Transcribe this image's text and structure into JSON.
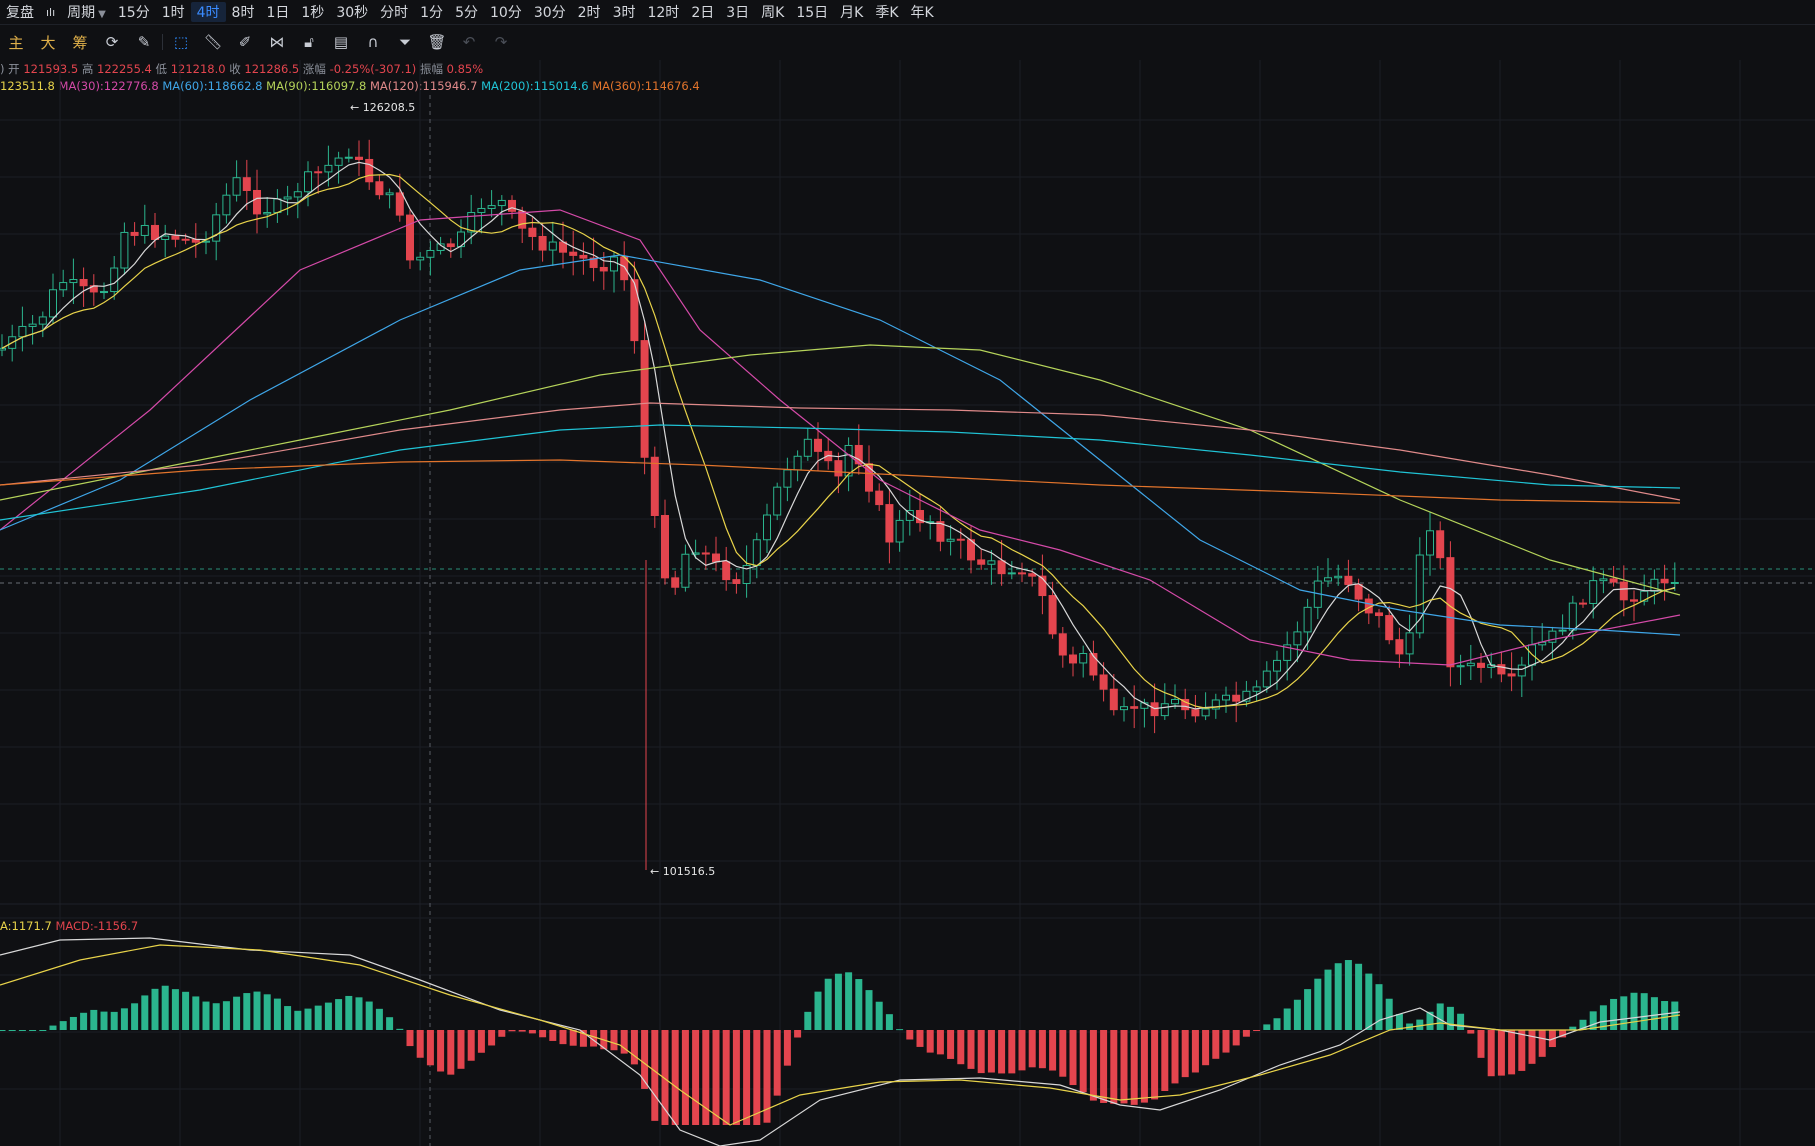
{
  "toolbar": {
    "items": [
      {
        "label": "复盘",
        "active": false
      },
      {
        "label": "周期",
        "active": false,
        "dropdown": true
      },
      {
        "label": "15分",
        "active": false
      },
      {
        "label": "1时",
        "active": false
      },
      {
        "label": "4时",
        "active": true
      },
      {
        "label": "8时",
        "active": false
      },
      {
        "label": "1日",
        "active": false
      },
      {
        "label": "1秒",
        "active": false
      },
      {
        "label": "30秒",
        "active": false
      },
      {
        "label": "分时",
        "active": false
      },
      {
        "label": "1分",
        "active": false
      },
      {
        "label": "5分",
        "active": false
      },
      {
        "label": "10分",
        "active": false
      },
      {
        "label": "30分",
        "active": false
      },
      {
        "label": "2时",
        "active": false
      },
      {
        "label": "3时",
        "active": false
      },
      {
        "label": "12时",
        "active": false
      },
      {
        "label": "2日",
        "active": false
      },
      {
        "label": "3日",
        "active": false
      },
      {
        "label": "周K",
        "active": false
      },
      {
        "label": "15日",
        "active": false
      },
      {
        "label": "月K",
        "active": false
      },
      {
        "label": "季K",
        "active": false
      },
      {
        "label": "年K",
        "active": false
      }
    ]
  },
  "drawbar": {
    "labels": {
      "main": "主",
      "big": "大",
      "chip": "筹"
    },
    "icons": [
      "refresh-icon",
      "brush-icon",
      "select-icon",
      "ruler-icon",
      "pen-icon",
      "pattern-icon",
      "lock-icon",
      "layout-icon",
      "magnet-icon",
      "filter-icon",
      "trash-icon",
      "undo-icon",
      "redo-icon"
    ]
  },
  "ohlc": {
    "open_label": "开",
    "open": "121593.5",
    "high_label": "高",
    "high": "122255.4",
    "low_label": "低",
    "low": "121218.0",
    "close_label": "收",
    "close": "121286.5",
    "change_label": "涨幅",
    "change": "-0.25%(-307.1)",
    "amp_label": "振幅",
    "amp": "0.85%"
  },
  "ma_legend": [
    {
      "text": "123511.8",
      "color": "#e8d34a"
    },
    {
      "text": "MA(30):122776.8",
      "color": "#d44aa8"
    },
    {
      "text": "MA(60):118662.8",
      "color": "#3fa6e8"
    },
    {
      "text": "MA(90):116097.8",
      "color": "#b5d35a"
    },
    {
      "text": "MA(120):115946.7",
      "color": "#e08a8a"
    },
    {
      "text": "MA(200):115014.6",
      "color": "#20c4d6"
    },
    {
      "text": "MA(360):114676.4",
      "color": "#e2742c"
    }
  ],
  "macd_legend": [
    {
      "text": "A:1171.7",
      "color": "#e8d34a"
    },
    {
      "text": "MACD:-1156.7",
      "color": "#e3454e"
    }
  ],
  "colors": {
    "up": "#2bb58e",
    "down": "#e3454e",
    "grid": "#1b1e25",
    "crosshair": "#5a5e66"
  },
  "chart_data": {
    "type": "candlestick",
    "annotations": [
      {
        "text": "126208.5",
        "kind": "high"
      },
      {
        "text": "101516.5",
        "kind": "low"
      }
    ],
    "ylim": [
      101516.5,
      126208.5
    ]
  }
}
